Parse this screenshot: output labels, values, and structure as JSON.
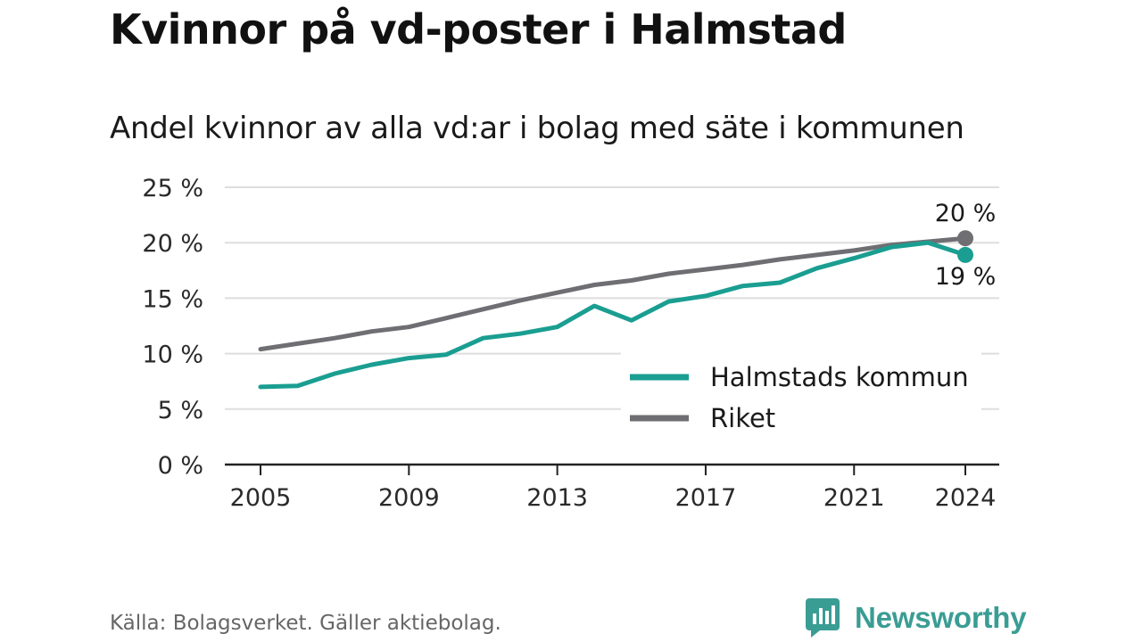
{
  "header": {
    "title": "Kvinnor på vd-poster i Halmstad",
    "subtitle": "Andel kvinnor av alla vd:ar i bolag med säte i kommunen"
  },
  "footer": {
    "source": "Källa: Bolagsverket. Gäller aktiebolag.",
    "brand": "Newsworthy",
    "brand_color": "#3a9d94"
  },
  "chart_data": {
    "type": "line",
    "x": [
      2005,
      2006,
      2007,
      2008,
      2009,
      2010,
      2011,
      2012,
      2013,
      2014,
      2015,
      2016,
      2017,
      2018,
      2019,
      2020,
      2021,
      2022,
      2023,
      2024
    ],
    "x_ticks": [
      "2005",
      "2009",
      "2013",
      "2017",
      "2021",
      "2024"
    ],
    "y_ticks": [
      "0 %",
      "5 %",
      "10 %",
      "15 %",
      "20 %",
      "25 %"
    ],
    "ylim": [
      0,
      25
    ],
    "grid": true,
    "legend_position": "lower-right",
    "series": [
      {
        "name": "Halmstads kommun",
        "color": "#1a9e91",
        "values": [
          7.0,
          7.1,
          8.2,
          9.0,
          9.6,
          9.9,
          11.4,
          11.8,
          12.4,
          14.3,
          13.0,
          14.7,
          15.2,
          16.1,
          16.4,
          17.7,
          18.6,
          19.6,
          20.0,
          18.9
        ],
        "end_label": "19 %"
      },
      {
        "name": "Riket",
        "color": "#6f6e73",
        "values": [
          10.4,
          10.9,
          11.4,
          12.0,
          12.4,
          13.2,
          14.0,
          14.8,
          15.5,
          16.2,
          16.6,
          17.2,
          17.6,
          18.0,
          18.5,
          18.9,
          19.3,
          19.8,
          20.1,
          20.4
        ],
        "end_label": "20 %"
      }
    ]
  }
}
